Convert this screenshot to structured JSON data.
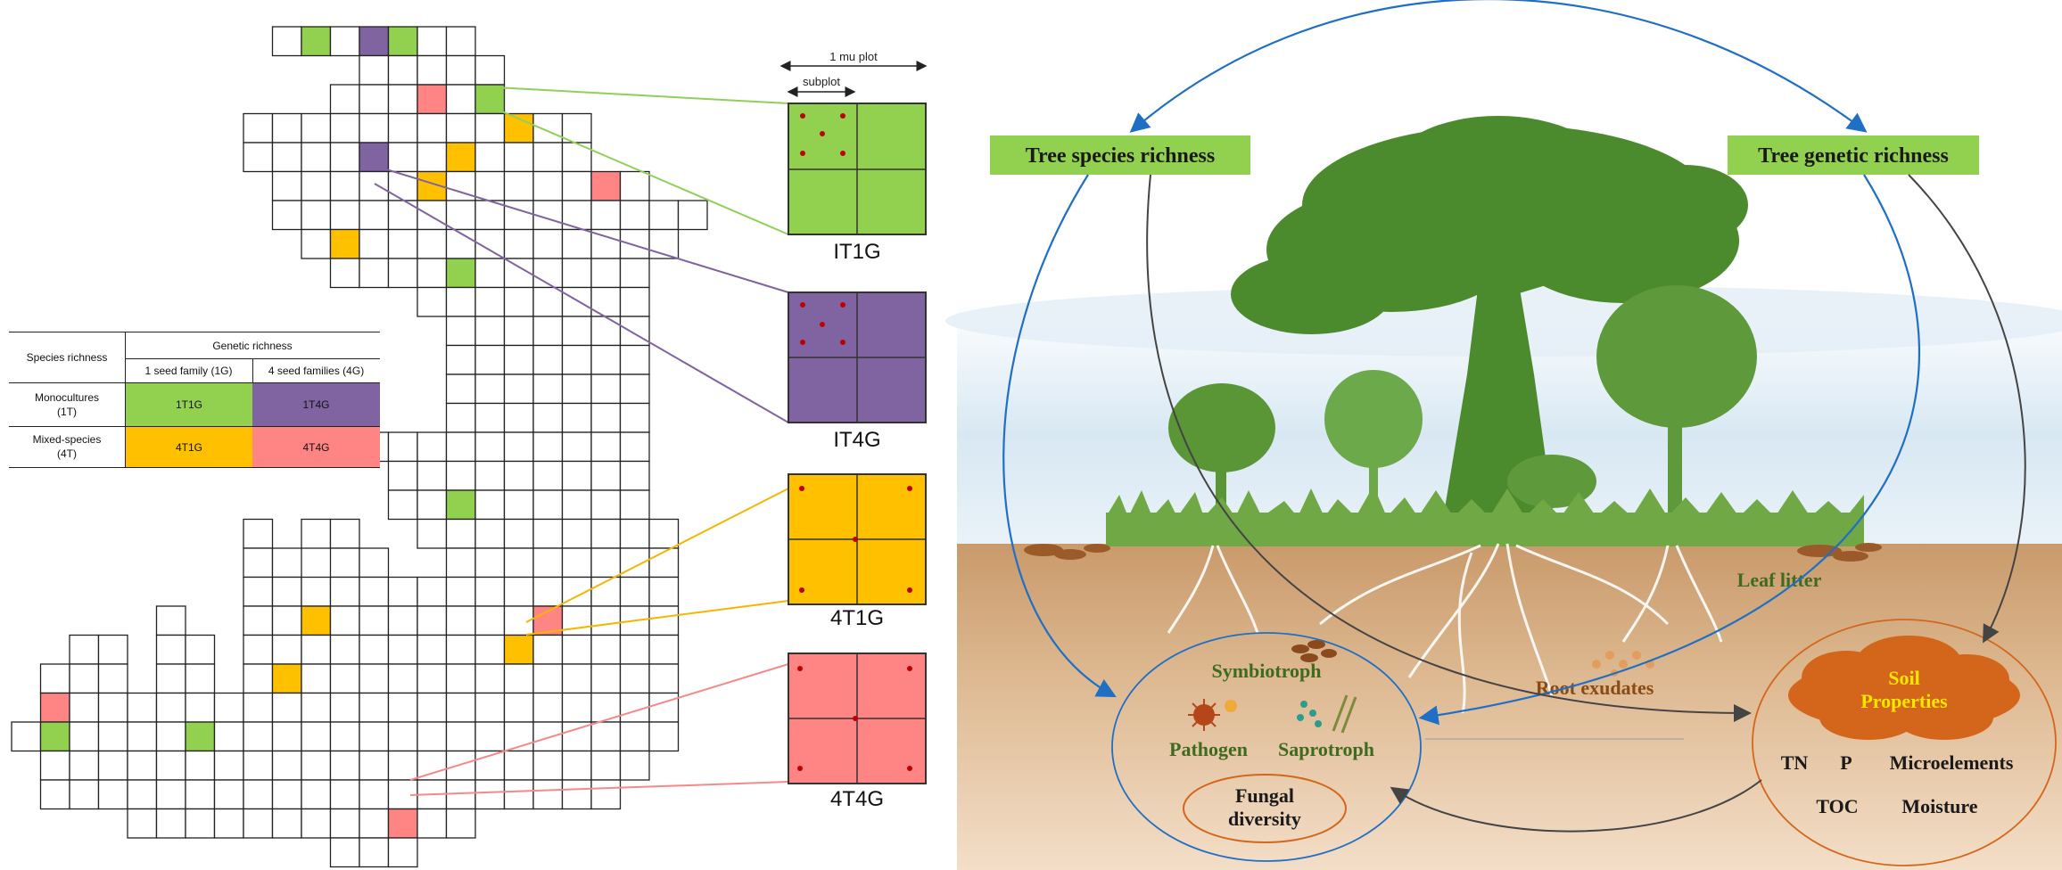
{
  "left_panel": {
    "mu_plot_label": "1 mu plot",
    "subplot_label": "subplot",
    "zoom_boxes": [
      {
        "label": "IT1G",
        "color": "#92D050",
        "line_color": "#8FD05A"
      },
      {
        "label": "IT4G",
        "color": "#8064A2",
        "line_color": "#8064A2"
      },
      {
        "label": "4T1G",
        "color": "#FFC000",
        "line_color": "#F2B705"
      },
      {
        "label": "4T4G",
        "color": "#FF8585",
        "line_color": "#F48A8A"
      }
    ],
    "legend_table": {
      "genetic_header": "Genetic richness",
      "species_header": "Species richness",
      "col_1g": "1 seed family (1G)",
      "col_4g": "4 seed families (4G)",
      "row_1t": "Monocultures (1T)",
      "row_4t": "Mixed-species (4T)",
      "cell_1t1g": "1T1G",
      "cell_1t4g": "1T4G",
      "cell_4t1g": "4T1G",
      "cell_4t4g": "4T4G"
    },
    "colors": {
      "green": "#92D050",
      "purple": "#8064A2",
      "yellow": "#FFC000",
      "pink": "#FF8585",
      "dot": "#C00000"
    }
  },
  "right_panel": {
    "species_box": "Tree species richness",
    "genetic_box": "Tree genetic richness",
    "leaf_litter": "Leaf litter",
    "root_exudates": "Root exudates",
    "symbiotroph": "Symbiotroph",
    "pathogen": "Pathogen",
    "saprotroph": "Saprotroph",
    "fungal_diversity": "Fungal diversity",
    "soil_properties": "Soil Properties",
    "tn": "TN",
    "p": "P",
    "microelements": "Microelements",
    "toc": "TOC",
    "moisture": "Moisture",
    "colors": {
      "box_green": "#92D050",
      "tree_green": "#4C8A2E",
      "soil": "#D9B38C",
      "cloud_orange": "#D4661C",
      "arrow_blue": "#1F6FC5",
      "label_dark_green": "#3E6B1F",
      "label_brown": "#8A4B12"
    }
  }
}
